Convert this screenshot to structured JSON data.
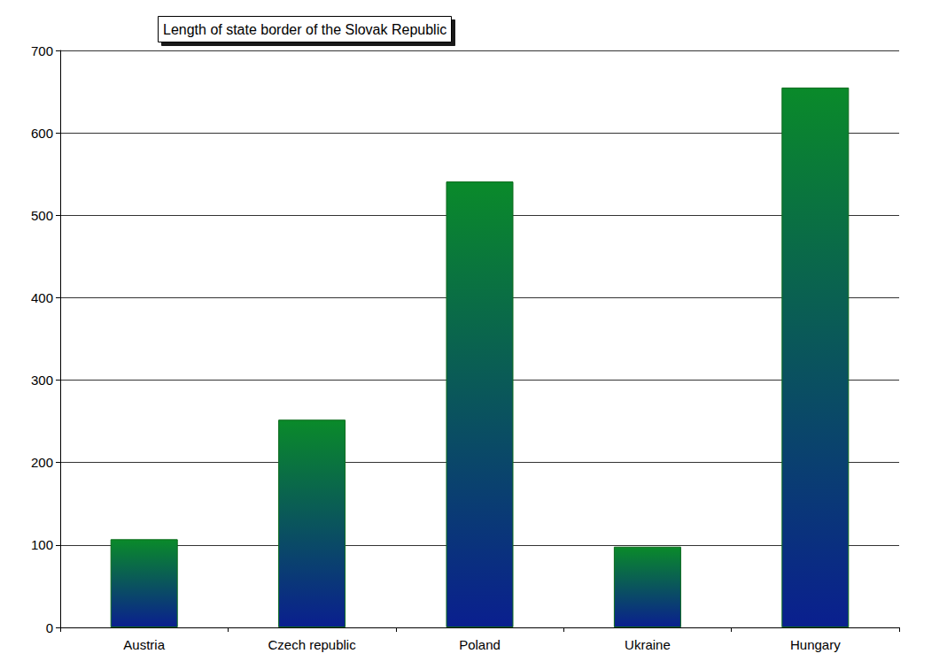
{
  "chart_data": {
    "type": "bar",
    "title": "Length of state border of the Slovak Republic",
    "categories": [
      "Austria",
      "Czech republic",
      "Poland",
      "Ukraine",
      "Hungary"
    ],
    "values": [
      107,
      252,
      541,
      98,
      655
    ],
    "color": "#0a8a2a",
    "ylim": [
      0,
      700
    ],
    "yticks": [
      0,
      100,
      200,
      300,
      400,
      500,
      600,
      700
    ],
    "grid": true
  }
}
